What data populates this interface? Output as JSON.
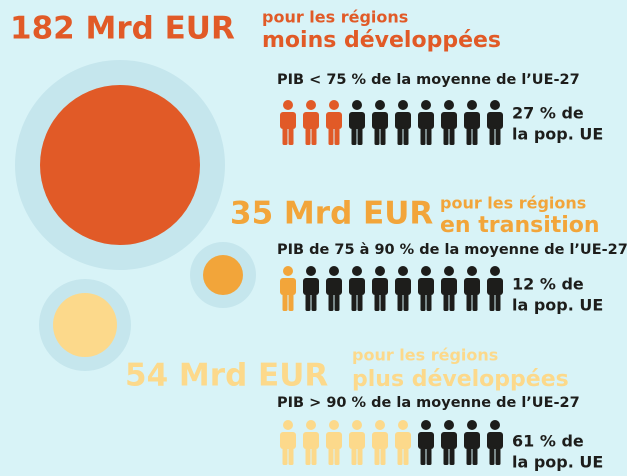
{
  "sections": [
    {
      "amount": "182 Mrd EUR",
      "label_top": "pour les régions",
      "label_bottom": "moins développées",
      "criterion": "PIB < 75 % de la moyenne de l’UE-27",
      "share_top": "27 % de",
      "share_bottom": "la pop. UE",
      "icons_total": 10,
      "icons_highlighted": 3,
      "color": "#e15a27"
    },
    {
      "amount": "35 Mrd EUR",
      "label_top": "pour les régions",
      "label_bottom": "en transition",
      "criterion": "PIB de 75 à 90 % de la moyenne de l’UE-27",
      "share_top": "12 % de",
      "share_bottom": "la pop. UE",
      "icons_total": 10,
      "icons_highlighted": 1,
      "color": "#f2a53a"
    },
    {
      "amount": "54 Mrd EUR",
      "label_top": "pour les régions",
      "label_bottom": "plus développées",
      "criterion": "PIB > 90 % de la moyenne de l’UE-27",
      "share_top": "61 % de",
      "share_bottom": "la pop. UE",
      "icons_total": 10,
      "icons_highlighted": 6,
      "color": "#fcd98b"
    }
  ]
}
